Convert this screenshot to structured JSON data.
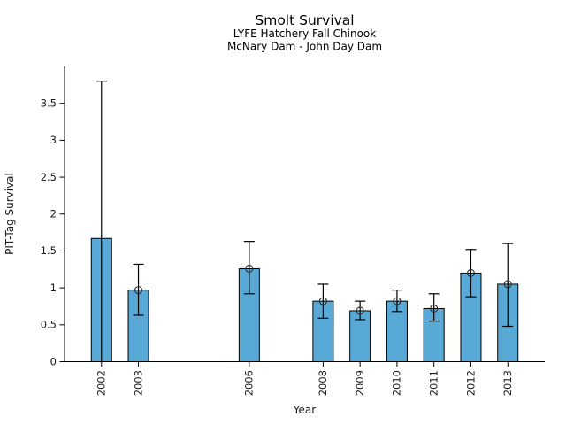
{
  "chart_data": {
    "type": "bar",
    "title": "Smolt Survival",
    "subtitle1": "LYFE Hatchery Fall Chinook",
    "subtitle2": "McNary Dam - John Day Dam",
    "xlabel": "Year",
    "ylabel": "PIT-Tag Survival",
    "categories": [
      "2002",
      "2003",
      "2006",
      "2008",
      "2009",
      "2010",
      "2011",
      "2012",
      "2013"
    ],
    "values": [
      1.67,
      0.97,
      1.26,
      0.82,
      0.69,
      0.82,
      0.72,
      1.2,
      1.05
    ],
    "error_low": [
      0.0,
      0.63,
      0.92,
      0.59,
      0.57,
      0.68,
      0.55,
      0.88,
      0.48
    ],
    "error_high": [
      3.8,
      1.32,
      1.63,
      1.05,
      0.82,
      0.97,
      0.92,
      1.52,
      1.6
    ],
    "point_marker": [
      false,
      true,
      true,
      true,
      true,
      true,
      true,
      true,
      true
    ],
    "lower_cap": [
      false,
      true,
      true,
      true,
      true,
      true,
      true,
      true,
      true
    ],
    "ylim": [
      0,
      4.0
    ],
    "yticks": [
      0,
      0.5,
      1,
      1.5,
      2,
      2.5,
      3,
      3.5
    ],
    "ytick_labels": [
      "0",
      "0.5",
      "1",
      "1.5",
      "2",
      "2.5",
      "3",
      "3.5"
    ],
    "x_domain": [
      2001,
      2014
    ],
    "grid": false,
    "legend": "none",
    "bar_color": "#58A9D6",
    "bar_edge_color": "#000000",
    "errorbar_color": "#000000",
    "marker_style": "open-circle"
  }
}
